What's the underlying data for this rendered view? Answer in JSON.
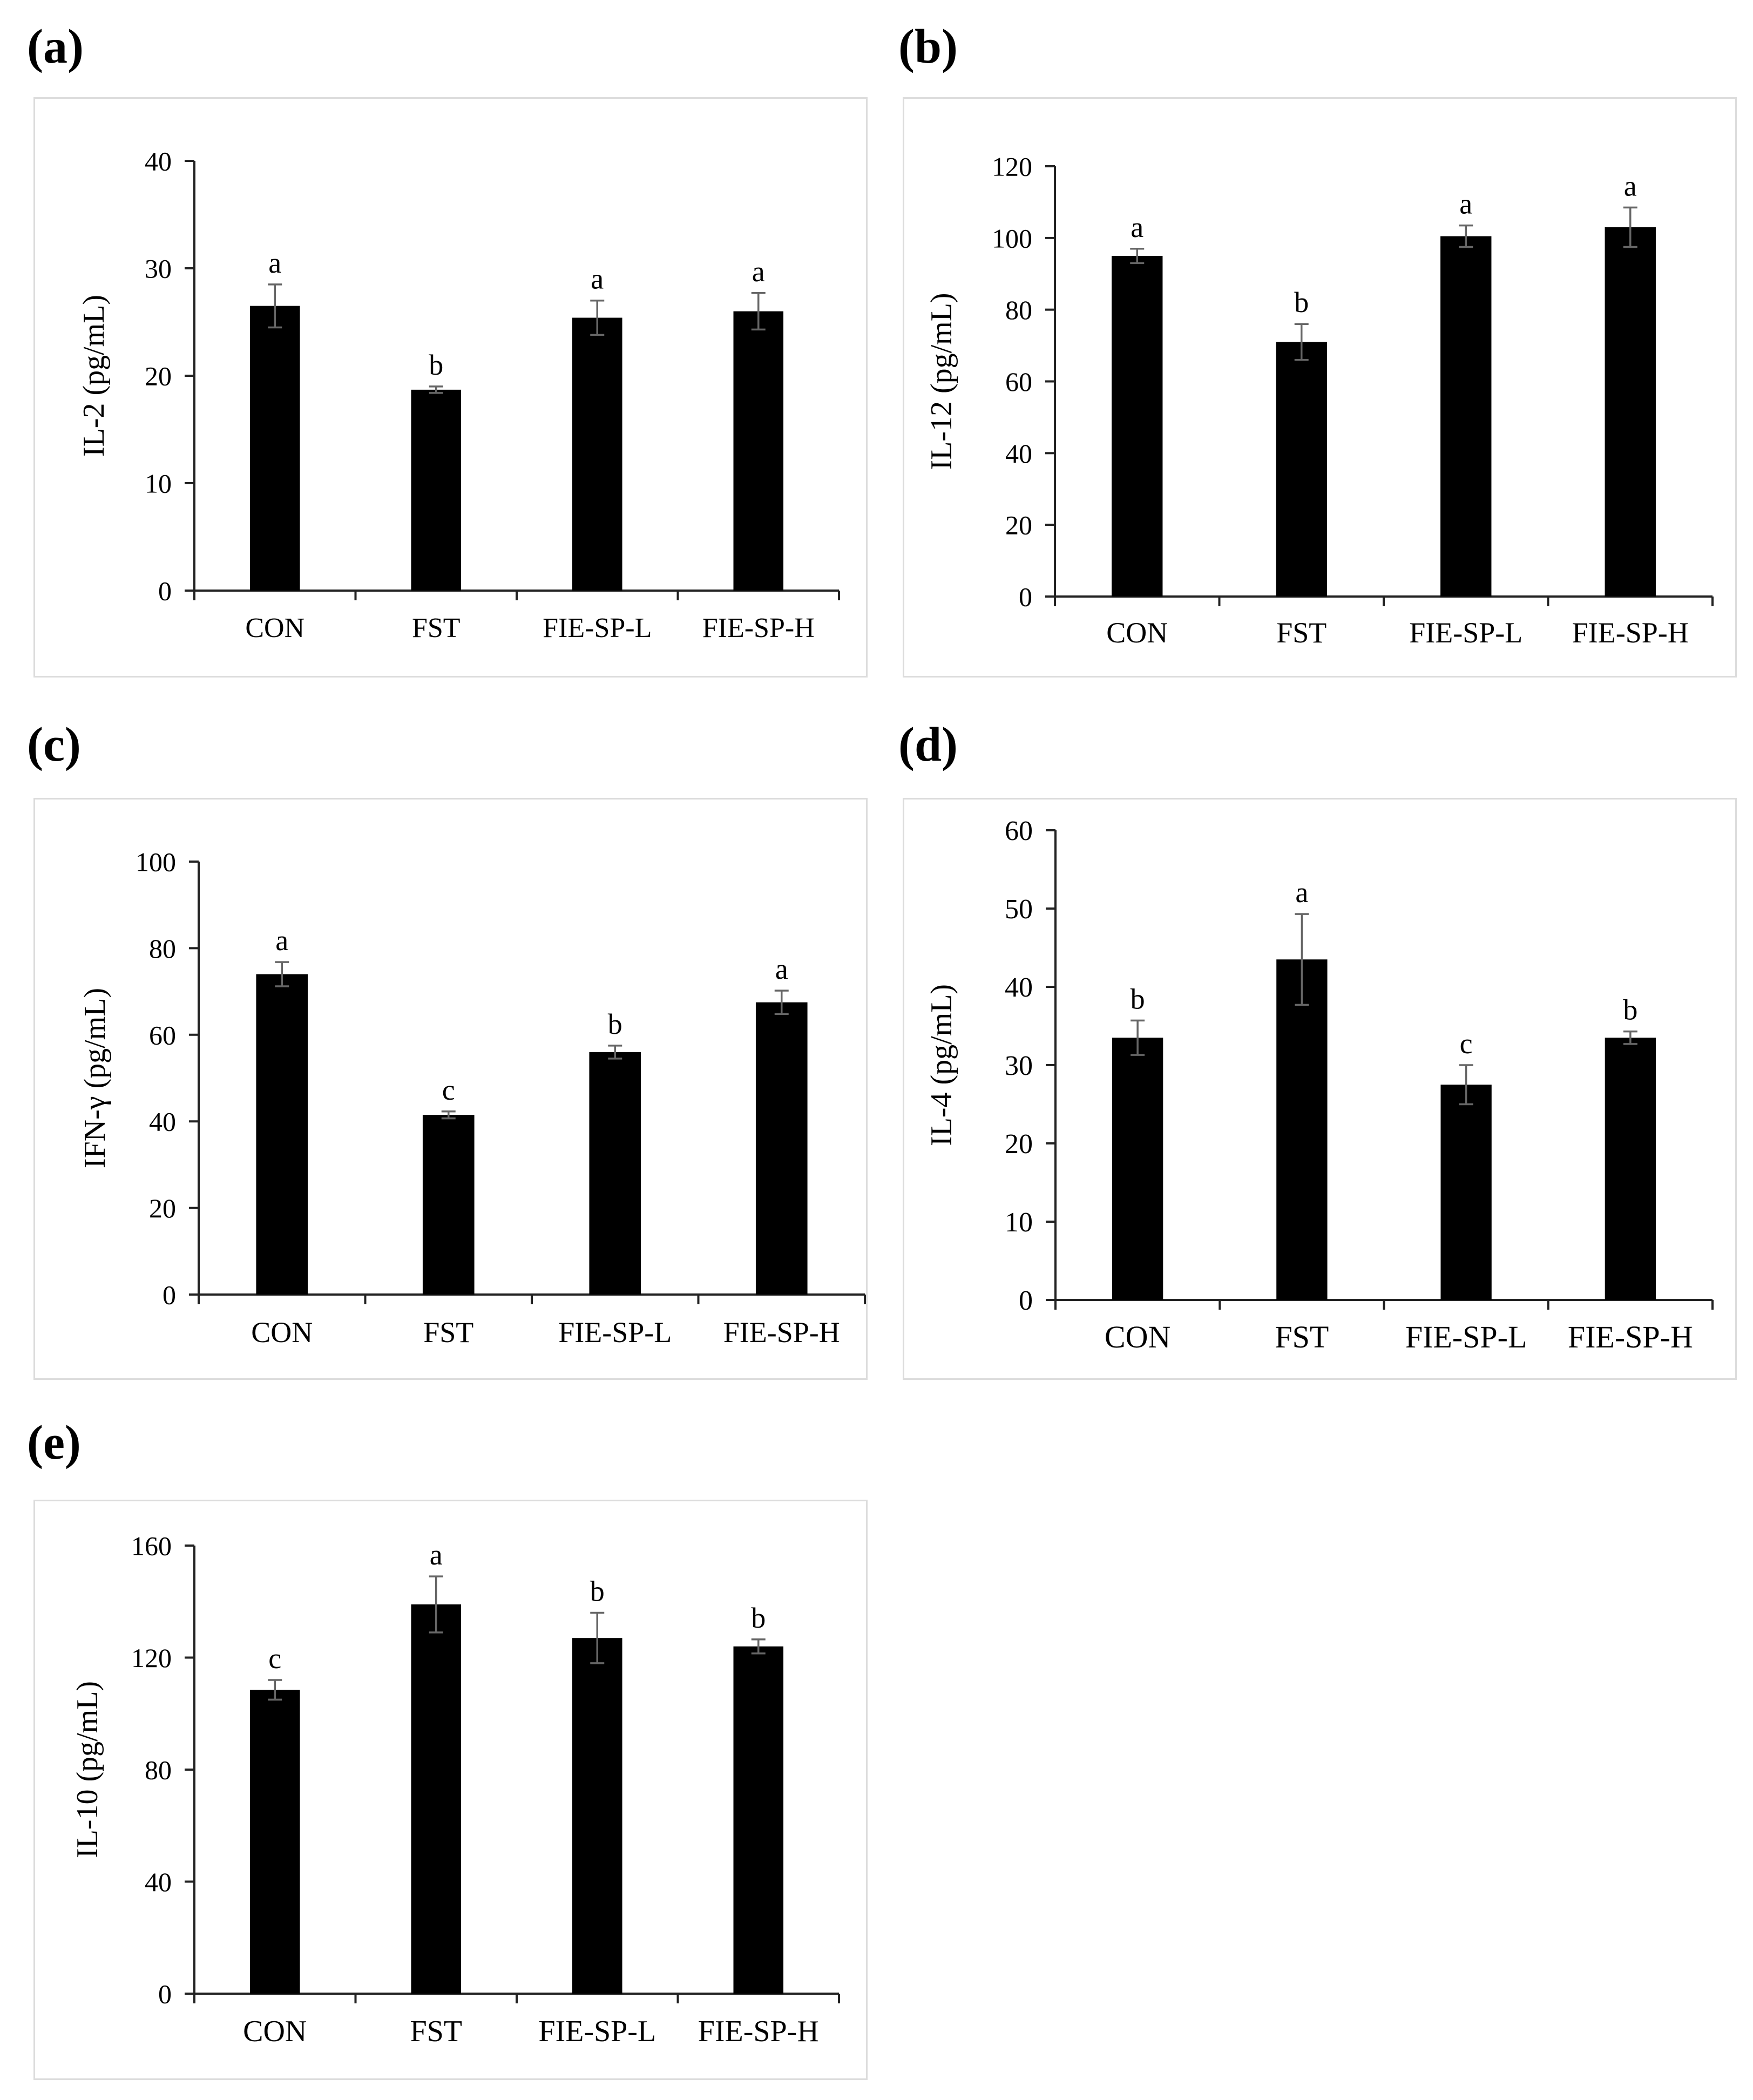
{
  "figure": {
    "panels": [
      {
        "id": "a",
        "label": "(a)"
      },
      {
        "id": "b",
        "label": "(b)"
      },
      {
        "id": "c",
        "label": "(c)"
      },
      {
        "id": "d",
        "label": "(d)"
      },
      {
        "id": "e",
        "label": "(e)"
      }
    ]
  },
  "chart_data": [
    {
      "type": "bar",
      "panel": "(a)",
      "categories": [
        "CON",
        "FST",
        "FIE-SP-L",
        "FIE-SP-H"
      ],
      "values": [
        26.5,
        18.7,
        25.4,
        26
      ],
      "errors": [
        2,
        0.3,
        1.6,
        1.7
      ],
      "significance": [
        "a",
        "b",
        "a",
        "a"
      ],
      "ylabel": "IL-2 (pg/mL)",
      "ylim": [
        0,
        40
      ],
      "yticks": [
        0,
        10,
        20,
        30,
        40
      ]
    },
    {
      "type": "bar",
      "panel": "(b)",
      "categories": [
        "CON",
        "FST",
        "FIE-SP-L",
        "FIE-SP-H"
      ],
      "values": [
        95,
        71,
        100.5,
        103
      ],
      "errors": [
        2,
        5,
        3,
        5.5
      ],
      "significance": [
        "a",
        "b",
        "a",
        "a"
      ],
      "ylabel": "IL-12 (pg/mL)",
      "ylim": [
        0,
        120
      ],
      "yticks": [
        0,
        20,
        40,
        60,
        80,
        100,
        120
      ]
    },
    {
      "type": "bar",
      "panel": "(c)",
      "categories": [
        "CON",
        "FST",
        "FIE-SP-L",
        "FIE-SP-H"
      ],
      "values": [
        74,
        41.5,
        56,
        67.5
      ],
      "errors": [
        2.8,
        0.8,
        1.5,
        2.7
      ],
      "significance": [
        "a",
        "c",
        "b",
        "a"
      ],
      "ylabel": "IFN-γ (pg/mL)",
      "ylim": [
        0,
        100
      ],
      "yticks": [
        0,
        20,
        40,
        60,
        80,
        100
      ]
    },
    {
      "type": "bar",
      "panel": "(d)",
      "categories": [
        "CON",
        "FST",
        "FIE-SP-L",
        "FIE-SP-H"
      ],
      "values": [
        33.5,
        43.5,
        27.5,
        33.5
      ],
      "errors": [
        2.2,
        5.8,
        2.5,
        0.8
      ],
      "significance": [
        "b",
        "a",
        "c",
        "b"
      ],
      "ylabel": "IL-4 (pg/mL)",
      "ylim": [
        0,
        60
      ],
      "yticks": [
        0,
        10,
        20,
        30,
        40,
        50,
        60
      ]
    },
    {
      "type": "bar",
      "panel": "(e)",
      "categories": [
        "CON",
        "FST",
        "FIE-SP-L",
        "FIE-SP-H"
      ],
      "values": [
        108.5,
        139,
        127,
        124
      ],
      "errors": [
        3.5,
        10,
        9,
        2.5
      ],
      "significance": [
        "c",
        "a",
        "b",
        "b"
      ],
      "ylabel": "IL-10 (pg/mL)",
      "ylim": [
        0,
        160
      ],
      "yticks": [
        0,
        40,
        80,
        120,
        160
      ]
    }
  ]
}
